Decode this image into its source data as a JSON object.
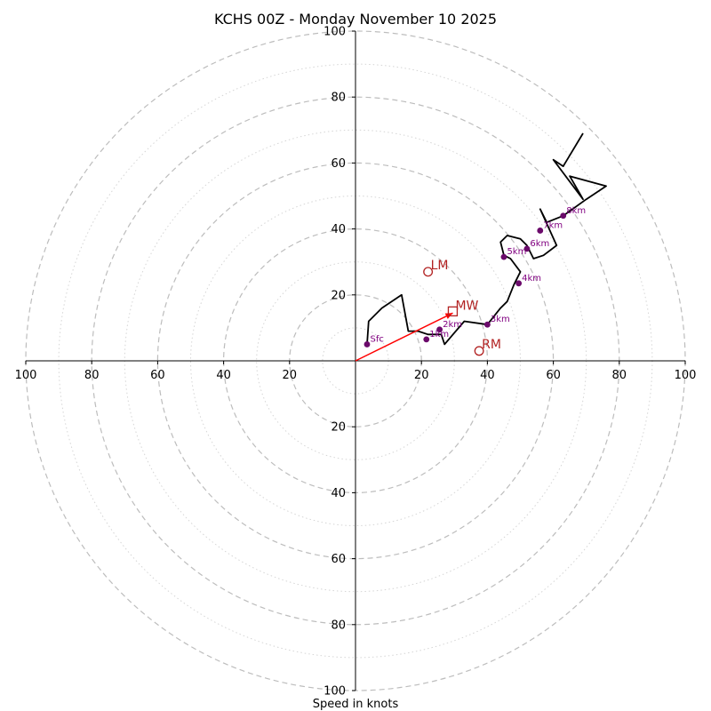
{
  "chart_data": {
    "type": "hodograph",
    "title": "KCHS 00Z - Monday November 10 2025",
    "xlabel": "Speed in knots",
    "range": [
      -100,
      100
    ],
    "major_rings": [
      20,
      40,
      60,
      80,
      100
    ],
    "minor_rings": [
      10,
      30,
      50,
      70,
      90
    ],
    "x_tick_labels": [
      "100",
      "80",
      "60",
      "40",
      "20",
      "20",
      "40",
      "60",
      "80",
      "100"
    ],
    "x_tick_values": [
      -100,
      -80,
      -60,
      -40,
      -20,
      20,
      40,
      60,
      80,
      100
    ],
    "y_tick_labels_top": [
      "20",
      "40",
      "60",
      "80",
      "100"
    ],
    "y_tick_values_top": [
      20,
      40,
      60,
      80,
      100
    ],
    "y_tick_labels_bottom": [
      "20",
      "40",
      "60",
      "80",
      "100"
    ],
    "y_tick_values_bottom": [
      -20,
      -40,
      -60,
      -80,
      -100
    ],
    "trace": {
      "color": "#000000",
      "u": [
        3.5,
        4,
        8,
        14,
        16,
        19,
        22,
        26,
        27,
        33,
        40,
        44,
        46,
        48,
        50,
        47,
        45,
        44,
        46,
        50,
        52,
        54,
        57,
        61,
        56,
        58,
        63,
        70,
        76,
        65,
        69,
        63,
        60,
        63,
        69
      ],
      "v": [
        5,
        12,
        16,
        20,
        9,
        9,
        8,
        8,
        5,
        12,
        11,
        16,
        18,
        23,
        27,
        31,
        32,
        36,
        38,
        37,
        35,
        31,
        32,
        35,
        46,
        42,
        44,
        49,
        53,
        56,
        49,
        57,
        61,
        59,
        69
      ]
    },
    "height_points": [
      {
        "label": "Sfc",
        "u": 3.5,
        "v": 5
      },
      {
        "label": "1km",
        "u": 21.5,
        "v": 6.5
      },
      {
        "label": "2km",
        "u": 25.5,
        "v": 9.5
      },
      {
        "label": "3km",
        "u": 40,
        "v": 11
      },
      {
        "label": "4km",
        "u": 49.5,
        "v": 23.5
      },
      {
        "label": "5km",
        "u": 45,
        "v": 31.5
      },
      {
        "label": "6km",
        "u": 52,
        "v": 34
      },
      {
        "label": "7km",
        "u": 56,
        "v": 39.5
      },
      {
        "label": "8km",
        "u": 63,
        "v": 44
      }
    ],
    "storm_motion": {
      "color": "#b22222",
      "LM": {
        "label": "LM",
        "u": 22,
        "v": 27
      },
      "MW": {
        "label": "MW",
        "u": 29.5,
        "v": 15
      },
      "RM": {
        "label": "RM",
        "u": 37.5,
        "v": 3
      }
    },
    "shear_vector": {
      "color": "#ff0000",
      "from": [
        0,
        0
      ],
      "to": [
        29.5,
        14.5
      ]
    }
  }
}
